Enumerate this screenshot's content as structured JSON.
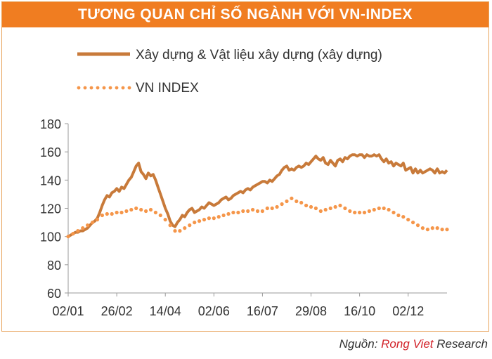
{
  "header": {
    "title": "TƯƠNG QUAN CHỈ SỐ NGÀNH VỚI VN-INDEX"
  },
  "source": {
    "prefix": "Nguồn: ",
    "brand": "Rong Viet",
    "suffix": " Research"
  },
  "colors": {
    "accent": "#f07d21",
    "line": "#c87a3a",
    "dots": "#f5964a",
    "brand": "#d2232a"
  },
  "chart_data": {
    "type": "line",
    "title": "TƯƠNG QUAN CHỈ SỐ NGÀNH VỚI VN-INDEX",
    "xlabel": "",
    "ylabel": "",
    "ylim": [
      60,
      180
    ],
    "yticks": [
      60,
      80,
      100,
      120,
      140,
      160,
      180
    ],
    "xticks": [
      "02/01",
      "26/02",
      "14/04",
      "02/06",
      "16/07",
      "29/08",
      "16/10",
      "02/12"
    ],
    "grid": false,
    "legend": "top-left",
    "series": [
      {
        "name": "Xây dựng & Vật liệu xây dựng (xây dựng)",
        "style": "solid",
        "x": [
          0,
          0.05,
          0.1,
          0.15,
          0.2,
          0.25,
          0.3,
          0.35,
          0.4,
          0.45,
          0.5,
          0.55,
          0.6,
          0.65,
          0.7,
          0.75,
          0.8,
          0.85,
          0.9,
          0.95,
          1,
          1.05,
          1.1,
          1.15,
          1.2,
          1.25,
          1.3,
          1.35,
          1.4,
          1.45,
          1.5,
          1.55,
          1.6,
          1.65,
          1.7,
          1.75,
          1.8,
          1.85,
          1.9,
          1.95,
          2,
          2.05,
          2.1,
          2.15,
          2.2,
          2.25,
          2.3,
          2.35,
          2.4,
          2.45,
          2.5,
          2.55,
          2.6,
          2.65,
          2.7,
          2.75,
          2.8,
          2.85,
          2.9,
          2.95,
          3,
          3.05,
          3.1,
          3.15,
          3.2,
          3.25,
          3.3,
          3.35,
          3.4,
          3.45,
          3.5,
          3.55,
          3.6,
          3.65,
          3.7,
          3.75,
          3.8,
          3.85,
          3.9,
          3.95,
          4,
          4.05,
          4.1,
          4.15,
          4.2,
          4.25,
          4.3,
          4.35,
          4.4,
          4.45,
          4.5,
          4.55,
          4.6,
          4.65,
          4.7,
          4.75,
          4.8,
          4.85,
          4.9,
          4.95,
          5,
          5.05,
          5.1,
          5.15,
          5.2,
          5.25,
          5.3,
          5.35,
          5.4,
          5.45,
          5.5,
          5.55,
          5.6,
          5.65,
          5.7,
          5.75,
          5.8,
          5.85,
          5.9,
          5.95,
          6,
          6.05,
          6.1,
          6.15,
          6.2,
          6.25,
          6.3,
          6.35,
          6.4,
          6.45,
          6.5,
          6.55,
          6.6,
          6.65,
          6.7,
          6.75,
          6.8,
          6.85,
          6.9,
          6.95,
          7,
          7.05,
          7.1,
          7.15,
          7.2,
          7.25,
          7.3,
          7.35,
          7.4,
          7.45,
          7.5,
          7.55,
          7.6,
          7.65,
          7.7,
          7.75,
          7.8
        ],
        "values": [
          100,
          101,
          102,
          103,
          103,
          104,
          104,
          105,
          106,
          108,
          110,
          111,
          113,
          117,
          122,
          126,
          129,
          128,
          131,
          132,
          134,
          132,
          135,
          134,
          137,
          140,
          142,
          146,
          150,
          152,
          146,
          144,
          141,
          145,
          143,
          144,
          140,
          135,
          130,
          125,
          120,
          116,
          111,
          108,
          107,
          110,
          112,
          115,
          114,
          117,
          119,
          120,
          117,
          118,
          119,
          121,
          120,
          122,
          124,
          123,
          122,
          123,
          124,
          126,
          127,
          128,
          126,
          127,
          129,
          130,
          131,
          132,
          131,
          133,
          134,
          133,
          135,
          136,
          137,
          138,
          139,
          139,
          138,
          140,
          139,
          141,
          143,
          144,
          147,
          149,
          150,
          147,
          148,
          147,
          149,
          150,
          149,
          150,
          152,
          151,
          153,
          155,
          157,
          155,
          154,
          156,
          152,
          151,
          154,
          152,
          150,
          154,
          155,
          153,
          156,
          155,
          157,
          158,
          158,
          157,
          158,
          158,
          156,
          158,
          157,
          157,
          158,
          157,
          158,
          155,
          153,
          155,
          152,
          153,
          150,
          152,
          151,
          150,
          152,
          147,
          148,
          149,
          145,
          148,
          145,
          147,
          145,
          146,
          147,
          148,
          147,
          145,
          148,
          145,
          146,
          145,
          147
        ]
      },
      {
        "name": "VN INDEX",
        "style": "dotted",
        "x": [
          0,
          0.1,
          0.2,
          0.3,
          0.4,
          0.5,
          0.6,
          0.7,
          0.8,
          0.9,
          1,
          1.1,
          1.2,
          1.3,
          1.4,
          1.5,
          1.6,
          1.7,
          1.8,
          1.9,
          2,
          2.1,
          2.2,
          2.3,
          2.4,
          2.5,
          2.6,
          2.7,
          2.8,
          2.9,
          3,
          3.1,
          3.2,
          3.3,
          3.4,
          3.5,
          3.6,
          3.7,
          3.8,
          3.9,
          4,
          4.1,
          4.2,
          4.3,
          4.4,
          4.5,
          4.6,
          4.7,
          4.8,
          4.9,
          5,
          5.1,
          5.2,
          5.3,
          5.4,
          5.5,
          5.6,
          5.7,
          5.8,
          5.9,
          6,
          6.1,
          6.2,
          6.3,
          6.4,
          6.5,
          6.6,
          6.7,
          6.8,
          6.9,
          7,
          7.1,
          7.2,
          7.3,
          7.4,
          7.5,
          7.6,
          7.7,
          7.8
        ],
        "values": [
          100,
          102,
          104,
          106,
          108,
          110,
          112,
          115,
          116,
          116,
          117,
          117,
          118,
          119,
          120,
          119,
          118,
          119,
          117,
          115,
          112,
          108,
          104,
          104,
          106,
          108,
          110,
          111,
          112,
          113,
          113,
          114,
          115,
          116,
          117,
          117,
          118,
          118,
          119,
          118,
          118,
          120,
          120,
          121,
          123,
          125,
          127,
          125,
          124,
          122,
          121,
          120,
          118,
          119,
          120,
          121,
          122,
          120,
          118,
          117,
          117,
          117,
          118,
          119,
          120,
          120,
          119,
          117,
          115,
          114,
          112,
          110,
          108,
          106,
          105,
          106,
          106,
          105,
          105
        ]
      }
    ]
  }
}
